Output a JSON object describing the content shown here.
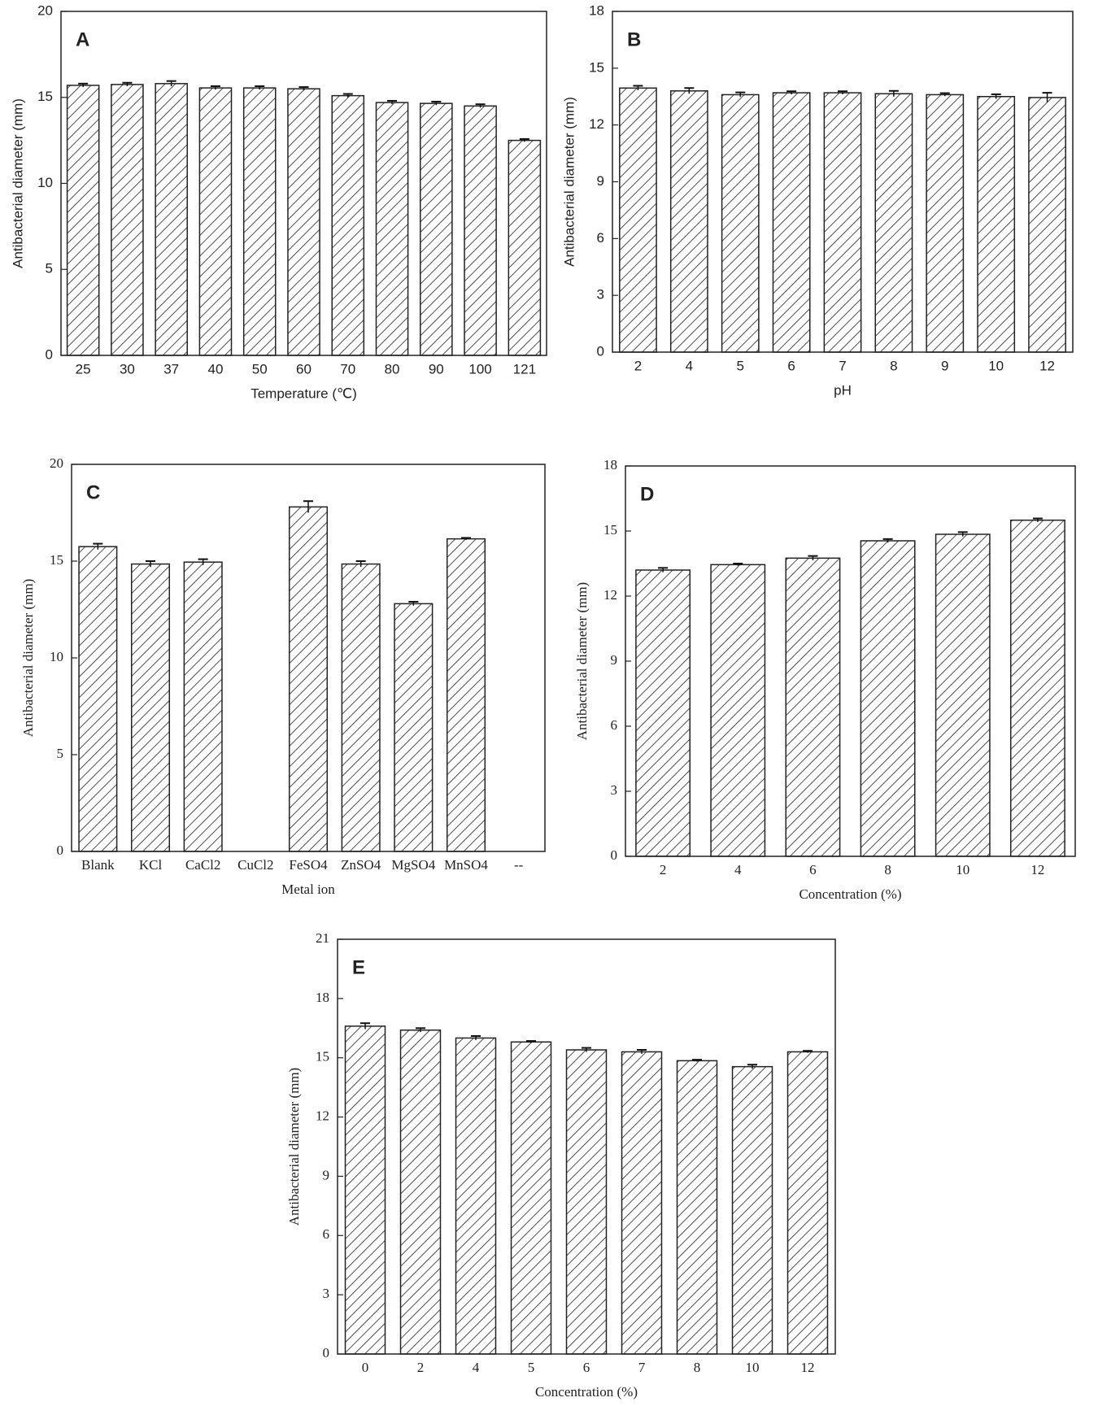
{
  "chart_data": [
    {
      "type": "bar",
      "panel": "A",
      "ylabel": "Antibacterial diameter (mm)",
      "xlabel": "Temperature (℃)",
      "categories": [
        "25",
        "30",
        "37",
        "40",
        "50",
        "60",
        "70",
        "80",
        "90",
        "100",
        "121"
      ],
      "values": [
        15.7,
        15.75,
        15.8,
        15.55,
        15.55,
        15.5,
        15.1,
        14.7,
        14.65,
        14.5,
        12.5
      ],
      "errors": [
        0.1,
        0.1,
        0.15,
        0.1,
        0.1,
        0.1,
        0.1,
        0.1,
        0.1,
        0.1,
        0.08
      ],
      "ylim": [
        0,
        20
      ],
      "yticks": [
        0,
        5,
        10,
        15,
        20
      ]
    },
    {
      "type": "bar",
      "panel": "B",
      "ylabel": "Antibacterial diameter (mm)",
      "xlabel": "pH",
      "categories": [
        "2",
        "4",
        "5",
        "6",
        "7",
        "8",
        "9",
        "10",
        "12"
      ],
      "values": [
        13.95,
        13.8,
        13.6,
        13.7,
        13.7,
        13.65,
        13.6,
        13.5,
        13.45
      ],
      "errors": [
        0.12,
        0.15,
        0.12,
        0.08,
        0.08,
        0.15,
        0.08,
        0.12,
        0.25
      ],
      "ylim": [
        0,
        18
      ],
      "yticks": [
        0,
        3,
        6,
        9,
        12,
        15,
        18
      ]
    },
    {
      "type": "bar",
      "panel": "C",
      "ylabel": "Antibacterial diameter (mm)",
      "xlabel": "Metal ion",
      "categories": [
        "Blank",
        "KCl",
        "CaCl2",
        "CuCl2",
        "FeSO4",
        "ZnSO4",
        "MgSO4",
        "MnSO4",
        "--"
      ],
      "values": [
        15.75,
        14.85,
        14.95,
        null,
        17.8,
        14.85,
        12.8,
        16.15,
        null
      ],
      "errors": [
        0.15,
        0.15,
        0.15,
        null,
        0.3,
        0.15,
        0.1,
        0.05,
        null
      ],
      "ylim": [
        0,
        20
      ],
      "yticks": [
        0,
        5,
        10,
        15,
        20
      ]
    },
    {
      "type": "bar",
      "panel": "D",
      "ylabel": "Antibacterial diameter (mm)",
      "xlabel": "Concentration (%)",
      "categories": [
        "2",
        "4",
        "6",
        "8",
        "10",
        "12"
      ],
      "values": [
        13.2,
        13.45,
        13.75,
        14.55,
        14.85,
        15.5
      ],
      "errors": [
        0.1,
        0.05,
        0.1,
        0.08,
        0.1,
        0.08
      ],
      "ylim": [
        0,
        18
      ],
      "yticks": [
        0,
        3,
        6,
        9,
        12,
        15,
        18
      ]
    },
    {
      "type": "bar",
      "panel": "E",
      "ylabel": "Antibacterial diameter (mm)",
      "xlabel": "Concentration (%)",
      "categories": [
        "0",
        "2",
        "4",
        "5",
        "6",
        "7",
        "8",
        "10",
        "12"
      ],
      "values": [
        16.6,
        16.4,
        16.0,
        15.8,
        15.4,
        15.3,
        14.85,
        14.55,
        15.3
      ],
      "errors": [
        0.15,
        0.1,
        0.1,
        0.05,
        0.1,
        0.1,
        0.05,
        0.1,
        0.05
      ],
      "ylim": [
        0,
        21
      ],
      "yticks": [
        0,
        3,
        6,
        9,
        12,
        15,
        18,
        21
      ]
    }
  ]
}
